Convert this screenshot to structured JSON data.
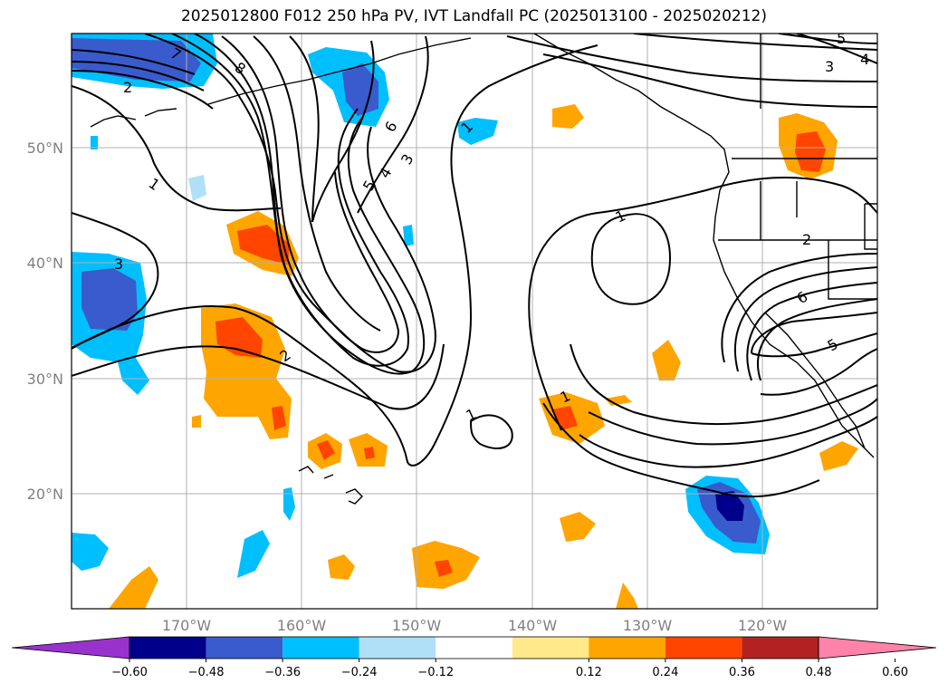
{
  "title": "2025012800 F012 250 hPa PV, IVT Landfall PC (2025013100 - 2025020212)",
  "latitude_labels": [
    "50°N",
    "40°N",
    "30°N",
    "20°N"
  ],
  "longitude_labels": [
    "170°W",
    "160°W",
    "150°W",
    "140°W",
    "130°W",
    "120°W"
  ],
  "contour_labels": [
    "7",
    "8",
    "2",
    "1",
    "3",
    "2",
    "6",
    "5",
    "4",
    "3",
    "1",
    "5",
    "3",
    "4",
    "1",
    "2",
    "6",
    "5",
    "1",
    "1"
  ],
  "colorbar": {
    "ticks": [
      "−0.60",
      "−0.48",
      "−0.36",
      "−0.24",
      "−0.12",
      "0.12",
      "0.24",
      "0.36",
      "0.48",
      "0.60"
    ],
    "colors": [
      "#9932cc",
      "#00008b",
      "#3a5bcc",
      "#00bfff",
      "#b0e0f8",
      "#ffffff",
      "#ffe98a",
      "#ffa500",
      "#ff4500",
      "#b22222",
      "#ff82a9"
    ]
  },
  "fill_colors": {
    "neg1": "#b0e0f8",
    "neg2": "#00bfff",
    "neg3": "#3a5bcc",
    "neg4": "#00008b",
    "pos1": "#ffe98a",
    "pos2": "#ffa500",
    "pos3": "#ff4500",
    "pos4": "#b22222"
  }
}
